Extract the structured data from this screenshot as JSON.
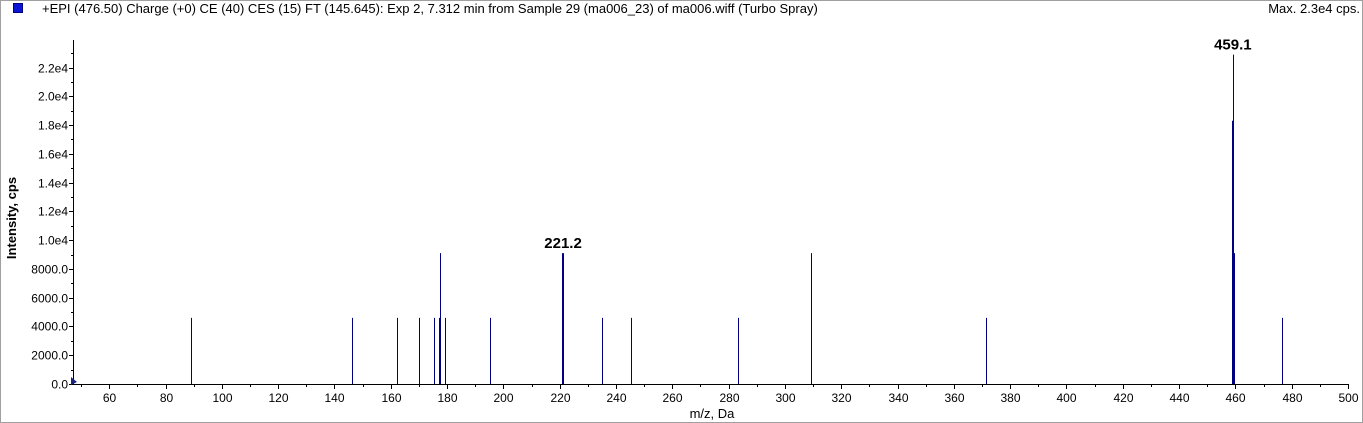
{
  "header": {
    "title": "+EPI (476.50) Charge (+0) CE (40) CES (15) FT (145.645): Exp 2, 7.312 min from Sample 29 (ma006_23) of ma006.wiff (Turbo Spray)",
    "max_label": "Max. 2.3e4 cps."
  },
  "colors": {
    "series": "#000080",
    "marker": "#0b15d6",
    "axis": "#000000"
  },
  "chart_data": {
    "type": "bar",
    "title": "+EPI (476.50) Charge (+0) CE (40) CES (15) FT (145.645): Exp 2, 7.312 min from Sample 29 (ma006_23) of ma006.wiff (Turbo Spray)",
    "xlabel": "m/z, Da",
    "ylabel": "Intensity, cps",
    "xlim": [
      47.5,
      500
    ],
    "ylim": [
      0,
      23500
    ],
    "grid": false,
    "x_ticks": [
      60,
      80,
      100,
      120,
      140,
      160,
      180,
      200,
      220,
      240,
      260,
      280,
      300,
      320,
      340,
      360,
      380,
      400,
      420,
      440,
      460,
      480,
      500
    ],
    "y_ticks": [
      {
        "value": 0,
        "label": "0.0"
      },
      {
        "value": 2000,
        "label": "2000.0"
      },
      {
        "value": 4000,
        "label": "4000.0"
      },
      {
        "value": 6000,
        "label": "6000.0"
      },
      {
        "value": 8000,
        "label": "8000.0"
      },
      {
        "value": 10000,
        "label": "1.0e4"
      },
      {
        "value": 12000,
        "label": "1.2e4"
      },
      {
        "value": 14000,
        "label": "1.4e4"
      },
      {
        "value": 16000,
        "label": "1.6e4"
      },
      {
        "value": 18000,
        "label": "1.8e4"
      },
      {
        "value": 20000,
        "label": "2.0e4"
      },
      {
        "value": 22000,
        "label": "2.2e4"
      }
    ],
    "peaks": [
      {
        "mz": 89.1,
        "intensity": 4600
      },
      {
        "mz": 146.1,
        "intensity": 4600
      },
      {
        "mz": 162.1,
        "intensity": 4600
      },
      {
        "mz": 170.1,
        "intensity": 4600
      },
      {
        "mz": 175.4,
        "intensity": 4600
      },
      {
        "mz": 177.0,
        "intensity": 4600
      },
      {
        "mz": 177.6,
        "intensity": 9100
      },
      {
        "mz": 179.1,
        "intensity": 4600
      },
      {
        "mz": 195.2,
        "intensity": 4600
      },
      {
        "mz": 221.0,
        "intensity": 9100
      },
      {
        "mz": 221.3,
        "intensity": 9100
      },
      {
        "mz": 235.2,
        "intensity": 4600
      },
      {
        "mz": 245.2,
        "intensity": 4600
      },
      {
        "mz": 283.2,
        "intensity": 4600
      },
      {
        "mz": 309.2,
        "intensity": 9100
      },
      {
        "mz": 371.3,
        "intensity": 4600
      },
      {
        "mz": 458.9,
        "intensity": 18300
      },
      {
        "mz": 459.1,
        "intensity": 22900
      },
      {
        "mz": 459.6,
        "intensity": 9100
      },
      {
        "mz": 476.5,
        "intensity": 4600
      }
    ],
    "annotations": [
      {
        "text": "459.1",
        "mz": 459.1,
        "intensity": 22900
      },
      {
        "text": "221.2",
        "mz": 221.2,
        "intensity": 9100
      }
    ]
  }
}
